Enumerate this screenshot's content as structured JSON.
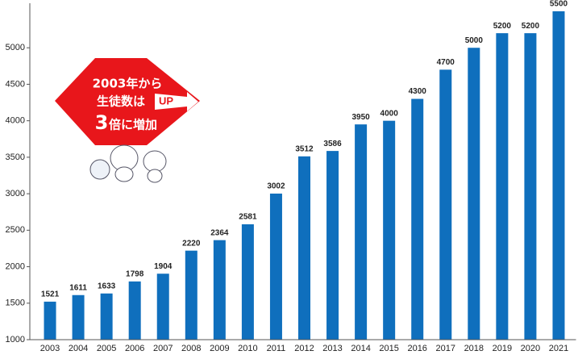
{
  "chart_data": {
    "type": "bar",
    "categories": [
      "2003",
      "2004",
      "2005",
      "2006",
      "2007",
      "2008",
      "2009",
      "2010",
      "2011",
      "2012",
      "2013",
      "2014",
      "2015",
      "2016",
      "2017",
      "2018",
      "2019",
      "2020",
      "2021"
    ],
    "values": [
      1521,
      1611,
      1633,
      1798,
      1904,
      2220,
      2364,
      2581,
      3002,
      3512,
      3586,
      3950,
      4000,
      4300,
      4700,
      5000,
      5200,
      5200,
      5500
    ],
    "color": "#0f6fbd",
    "ylim": [
      1000,
      5500
    ],
    "yticks": [
      1000,
      1500,
      2000,
      2500,
      3000,
      3500,
      4000,
      4500,
      5000
    ],
    "grid": false,
    "annotations": [
      "2003年から",
      "生徒数は",
      "UP",
      "3",
      "倍に増加"
    ]
  }
}
